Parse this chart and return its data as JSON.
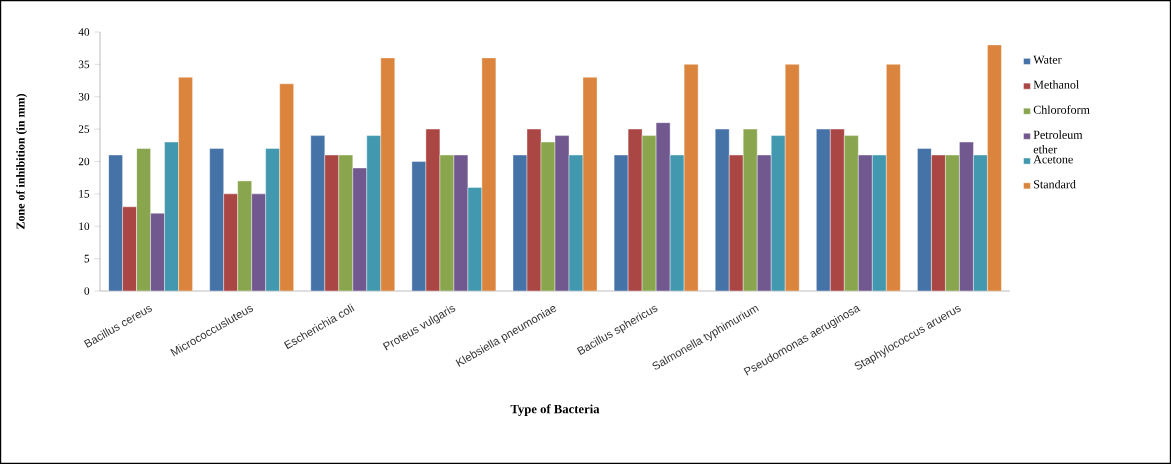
{
  "chart_data": {
    "type": "bar",
    "xlabel": "Type of Bacteria",
    "ylabel": "Zone of inhibition (in mm)",
    "categories": [
      "Bacillus cereus",
      "Micrococcusluteus",
      "Escherichia coli",
      "Proteus vulgaris",
      "Klebsiella pneumoniae",
      "Bacillus sphericus",
      "Salmonella typhimurium",
      "Pseudomonas aeruginosa",
      "Staphylococcus aruerus"
    ],
    "series": [
      {
        "name": "Water",
        "color": "#4572a7",
        "values": [
          21,
          22,
          24,
          20,
          21,
          21,
          25,
          25,
          22
        ]
      },
      {
        "name": "Methanol",
        "color": "#aa4643",
        "values": [
          13,
          15,
          21,
          25,
          25,
          25,
          21,
          25,
          21
        ]
      },
      {
        "name": "Chloroform",
        "color": "#89a54e",
        "values": [
          22,
          17,
          21,
          21,
          23,
          24,
          25,
          24,
          21
        ]
      },
      {
        "name": "Petroleum ether",
        "color": "#71588f",
        "values": [
          12,
          15,
          19,
          21,
          24,
          26,
          21,
          21,
          23
        ]
      },
      {
        "name": "Acetone",
        "color": "#4198af",
        "values": [
          23,
          22,
          24,
          16,
          21,
          21,
          24,
          21,
          21
        ]
      },
      {
        "name": "Standard",
        "color": "#db843d",
        "values": [
          33,
          32,
          36,
          36,
          33,
          35,
          35,
          35,
          38
        ]
      }
    ],
    "ylim": [
      0,
      40
    ],
    "yticks": [
      0,
      5,
      10,
      15,
      20,
      25,
      30,
      35,
      40
    ],
    "legend": "right"
  }
}
